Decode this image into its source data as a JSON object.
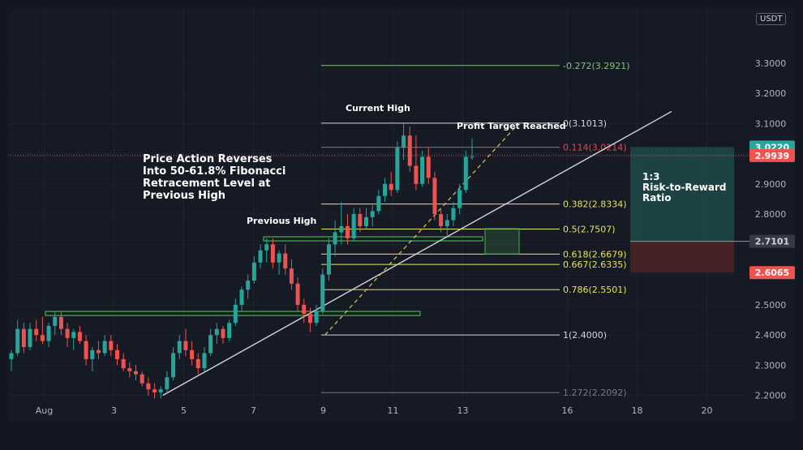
{
  "currency_badge": "USDT",
  "colors": {
    "background": "#131722",
    "panel": "#161a25",
    "grid": "#1f2330",
    "candle_up": "#26a69a",
    "candle_down": "#ef5350",
    "fib_yellow": "#e6e45a",
    "fib_white": "#d1d4dc",
    "fib_red": "#e24a4a",
    "fib_green": "#7ec27a",
    "fib_gray": "#787b86",
    "trendline": "#d1d4dc",
    "dashed_line": "#e6c34a",
    "target_zone": "#1d4a4a",
    "stop_zone": "#4a2326",
    "support_box": "#4caf50"
  },
  "annotations": {
    "headline": [
      "Price Action Reverses",
      "Into 50-61.8% Fibonacci",
      "Retracement Level at",
      "Previous High"
    ],
    "previous_high": "Previous High",
    "current_high": "Current High",
    "profit_target": "Profit Target Reached",
    "ratio": [
      "1:3",
      "Risk-to-Reward",
      "Ratio"
    ]
  },
  "chart_data": {
    "type": "candlestick",
    "title": "",
    "x_tick_labels": [
      "Aug",
      "3",
      "5",
      "7",
      "9",
      "11",
      "13",
      "16",
      "18",
      "20"
    ],
    "y_tick_labels": [
      "3.3000",
      "3.2000",
      "3.1000",
      "3.0000",
      "2.9000",
      "2.8000",
      "2.7000",
      "2.6000",
      "2.5000",
      "2.4000",
      "2.3000",
      "2.2000"
    ],
    "ylim": [
      2.183,
      3.482
    ],
    "xlim_days": [
      "Jul 31",
      "Aug 21"
    ],
    "price_labels": [
      {
        "value": "3.0220",
        "color": "#26a69a",
        "text_color": "#ffffff"
      },
      {
        "value": "2.9939",
        "color": "#ef5350",
        "text_color": "#ffffff"
      },
      {
        "value": "2.7101",
        "color": "#363a45",
        "text_color": "#d1d4dc"
      },
      {
        "value": "2.6065",
        "color": "#ef5350",
        "text_color": "#ffffff"
      }
    ],
    "current_price": 2.9939,
    "fib_levels": [
      {
        "label": "-0.272(3.2921)",
        "value": 3.2921,
        "color": "#7ec27a"
      },
      {
        "label": "0(3.1013)",
        "value": 3.1013,
        "color": "#d1d4dc"
      },
      {
        "label": "0.114(3.0214)",
        "value": 3.0214,
        "color": "#e24a4a"
      },
      {
        "label": "0.382(2.8334)",
        "value": 2.8334,
        "color": "#e6e45a"
      },
      {
        "label": "0.5(2.7507)",
        "value": 2.7507,
        "color": "#e6e45a"
      },
      {
        "label": "0.618(2.6679)",
        "value": 2.6679,
        "color": "#e6e45a"
      },
      {
        "label": "0.667(2.6335)",
        "value": 2.6335,
        "color": "#e6e45a"
      },
      {
        "label": "0.786(2.5501)",
        "value": 2.5501,
        "color": "#e6e45a"
      },
      {
        "label": "1(2.4000)",
        "value": 2.4,
        "color": "#d1d4dc"
      },
      {
        "label": "1.272(2.2092)",
        "value": 2.2092,
        "color": "#787b86"
      }
    ],
    "candles": [
      {
        "o": 2.32,
        "h": 2.35,
        "l": 2.28,
        "c": 2.34
      },
      {
        "o": 2.34,
        "h": 2.45,
        "l": 2.33,
        "c": 2.42
      },
      {
        "o": 2.42,
        "h": 2.44,
        "l": 2.34,
        "c": 2.36
      },
      {
        "o": 2.36,
        "h": 2.44,
        "l": 2.35,
        "c": 2.42
      },
      {
        "o": 2.42,
        "h": 2.45,
        "l": 2.38,
        "c": 2.4
      },
      {
        "o": 2.4,
        "h": 2.46,
        "l": 2.37,
        "c": 2.38
      },
      {
        "o": 2.38,
        "h": 2.44,
        "l": 2.36,
        "c": 2.43
      },
      {
        "o": 2.43,
        "h": 2.48,
        "l": 2.4,
        "c": 2.46
      },
      {
        "o": 2.46,
        "h": 2.48,
        "l": 2.4,
        "c": 2.42
      },
      {
        "o": 2.42,
        "h": 2.44,
        "l": 2.36,
        "c": 2.39
      },
      {
        "o": 2.39,
        "h": 2.42,
        "l": 2.35,
        "c": 2.41
      },
      {
        "o": 2.41,
        "h": 2.43,
        "l": 2.37,
        "c": 2.38
      },
      {
        "o": 2.38,
        "h": 2.4,
        "l": 2.3,
        "c": 2.32
      },
      {
        "o": 2.32,
        "h": 2.36,
        "l": 2.28,
        "c": 2.35
      },
      {
        "o": 2.35,
        "h": 2.38,
        "l": 2.32,
        "c": 2.34
      },
      {
        "o": 2.34,
        "h": 2.4,
        "l": 2.33,
        "c": 2.38
      },
      {
        "o": 2.38,
        "h": 2.4,
        "l": 2.33,
        "c": 2.35
      },
      {
        "o": 2.35,
        "h": 2.37,
        "l": 2.3,
        "c": 2.32
      },
      {
        "o": 2.32,
        "h": 2.34,
        "l": 2.28,
        "c": 2.29
      },
      {
        "o": 2.29,
        "h": 2.31,
        "l": 2.26,
        "c": 2.28
      },
      {
        "o": 2.28,
        "h": 2.3,
        "l": 2.25,
        "c": 2.27
      },
      {
        "o": 2.27,
        "h": 2.28,
        "l": 2.23,
        "c": 2.24
      },
      {
        "o": 2.24,
        "h": 2.26,
        "l": 2.2,
        "c": 2.22
      },
      {
        "o": 2.22,
        "h": 2.24,
        "l": 2.19,
        "c": 2.21
      },
      {
        "o": 2.21,
        "h": 2.23,
        "l": 2.19,
        "c": 2.22
      },
      {
        "o": 2.22,
        "h": 2.28,
        "l": 2.21,
        "c": 2.26
      },
      {
        "o": 2.26,
        "h": 2.36,
        "l": 2.25,
        "c": 2.34
      },
      {
        "o": 2.34,
        "h": 2.4,
        "l": 2.32,
        "c": 2.38
      },
      {
        "o": 2.38,
        "h": 2.42,
        "l": 2.33,
        "c": 2.35
      },
      {
        "o": 2.35,
        "h": 2.38,
        "l": 2.3,
        "c": 2.32
      },
      {
        "o": 2.32,
        "h": 2.34,
        "l": 2.27,
        "c": 2.29
      },
      {
        "o": 2.29,
        "h": 2.36,
        "l": 2.28,
        "c": 2.34
      },
      {
        "o": 2.34,
        "h": 2.42,
        "l": 2.33,
        "c": 2.4
      },
      {
        "o": 2.4,
        "h": 2.44,
        "l": 2.37,
        "c": 2.42
      },
      {
        "o": 2.42,
        "h": 2.43,
        "l": 2.37,
        "c": 2.39
      },
      {
        "o": 2.39,
        "h": 2.45,
        "l": 2.38,
        "c": 2.44
      },
      {
        "o": 2.44,
        "h": 2.52,
        "l": 2.43,
        "c": 2.5
      },
      {
        "o": 2.5,
        "h": 2.56,
        "l": 2.48,
        "c": 2.55
      },
      {
        "o": 2.55,
        "h": 2.6,
        "l": 2.52,
        "c": 2.58
      },
      {
        "o": 2.58,
        "h": 2.66,
        "l": 2.57,
        "c": 2.64
      },
      {
        "o": 2.64,
        "h": 2.7,
        "l": 2.62,
        "c": 2.68
      },
      {
        "o": 2.68,
        "h": 2.72,
        "l": 2.64,
        "c": 2.7
      },
      {
        "o": 2.7,
        "h": 2.72,
        "l": 2.62,
        "c": 2.64
      },
      {
        "o": 2.64,
        "h": 2.68,
        "l": 2.6,
        "c": 2.67
      },
      {
        "o": 2.67,
        "h": 2.7,
        "l": 2.6,
        "c": 2.62
      },
      {
        "o": 2.62,
        "h": 2.65,
        "l": 2.55,
        "c": 2.57
      },
      {
        "o": 2.57,
        "h": 2.59,
        "l": 2.48,
        "c": 2.5
      },
      {
        "o": 2.5,
        "h": 2.52,
        "l": 2.44,
        "c": 2.47
      },
      {
        "o": 2.47,
        "h": 2.49,
        "l": 2.41,
        "c": 2.44
      },
      {
        "o": 2.44,
        "h": 2.5,
        "l": 2.43,
        "c": 2.48
      },
      {
        "o": 2.48,
        "h": 2.62,
        "l": 2.47,
        "c": 2.6
      },
      {
        "o": 2.6,
        "h": 2.72,
        "l": 2.58,
        "c": 2.7
      },
      {
        "o": 2.7,
        "h": 2.78,
        "l": 2.66,
        "c": 2.74
      },
      {
        "o": 2.74,
        "h": 2.84,
        "l": 2.7,
        "c": 2.76
      },
      {
        "o": 2.76,
        "h": 2.8,
        "l": 2.7,
        "c": 2.72
      },
      {
        "o": 2.72,
        "h": 2.82,
        "l": 2.71,
        "c": 2.8
      },
      {
        "o": 2.8,
        "h": 2.82,
        "l": 2.74,
        "c": 2.76
      },
      {
        "o": 2.76,
        "h": 2.82,
        "l": 2.75,
        "c": 2.79
      },
      {
        "o": 2.79,
        "h": 2.83,
        "l": 2.76,
        "c": 2.81
      },
      {
        "o": 2.81,
        "h": 2.88,
        "l": 2.8,
        "c": 2.86
      },
      {
        "o": 2.86,
        "h": 2.92,
        "l": 2.84,
        "c": 2.9
      },
      {
        "o": 2.9,
        "h": 2.94,
        "l": 2.86,
        "c": 2.88
      },
      {
        "o": 2.88,
        "h": 3.04,
        "l": 2.87,
        "c": 3.02
      },
      {
        "o": 3.02,
        "h": 3.1,
        "l": 2.98,
        "c": 3.06
      },
      {
        "o": 3.06,
        "h": 3.09,
        "l": 2.94,
        "c": 2.96
      },
      {
        "o": 2.96,
        "h": 3.06,
        "l": 2.88,
        "c": 2.9
      },
      {
        "o": 2.9,
        "h": 3.01,
        "l": 2.89,
        "c": 2.99
      },
      {
        "o": 2.99,
        "h": 3.02,
        "l": 2.9,
        "c": 2.92
      },
      {
        "o": 2.92,
        "h": 2.94,
        "l": 2.78,
        "c": 2.8
      },
      {
        "o": 2.8,
        "h": 2.82,
        "l": 2.74,
        "c": 2.76
      },
      {
        "o": 2.76,
        "h": 2.8,
        "l": 2.73,
        "c": 2.78
      },
      {
        "o": 2.78,
        "h": 2.84,
        "l": 2.76,
        "c": 2.82
      },
      {
        "o": 2.82,
        "h": 2.9,
        "l": 2.8,
        "c": 2.88
      },
      {
        "o": 2.88,
        "h": 3.01,
        "l": 2.87,
        "c": 2.99
      },
      {
        "o": 2.99,
        "h": 3.05,
        "l": 2.98,
        "c": 2.99
      }
    ]
  }
}
